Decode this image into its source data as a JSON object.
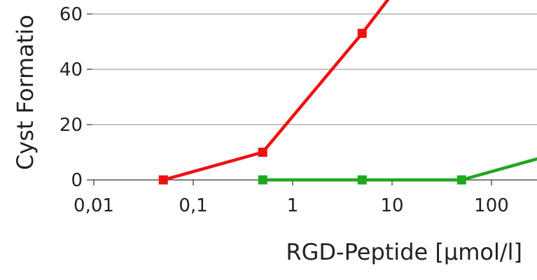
{
  "chart_data": {
    "type": "line",
    "title": "",
    "xlabel": "RGD-Peptide [µmol/l]",
    "ylabel": "Cyst Formatio",
    "x_scale": "log",
    "x_ticks": [
      0.01,
      0.1,
      1,
      10,
      100
    ],
    "x_tick_labels": [
      "0,01",
      "0,1",
      "1",
      "10",
      "100"
    ],
    "y_ticks": [
      0,
      20,
      40,
      60
    ],
    "y_tick_labels": [
      "0",
      "20",
      "40",
      "60"
    ],
    "ylim": [
      0,
      60
    ],
    "grid": "horizontal",
    "series": [
      {
        "color": "#ee1111",
        "x": [
          0.05,
          0.5,
          5,
          50
        ],
        "y": [
          0,
          10,
          53,
          100
        ]
      },
      {
        "color": "#1ea81e",
        "x": [
          0.5,
          5,
          50,
          500
        ],
        "y": [
          0,
          0,
          0,
          10
        ]
      }
    ]
  }
}
